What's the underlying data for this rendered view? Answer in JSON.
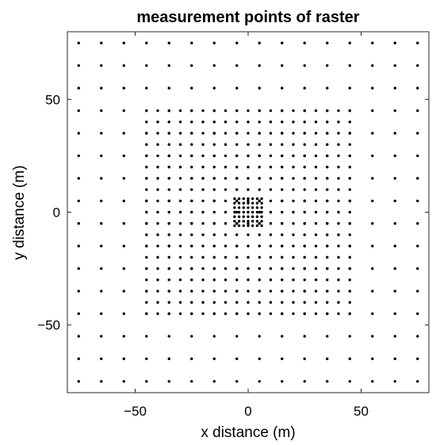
{
  "chart_data": {
    "type": "scatter",
    "title": "measurement points of raster",
    "xlabel": "x distance (m)",
    "ylabel": "y distance (m)",
    "xlim": [
      -80,
      80
    ],
    "ylim": [
      -80,
      80
    ],
    "xticks": [
      -50,
      0,
      50
    ],
    "yticks": [
      -50,
      0,
      50
    ],
    "xtick_labels": [
      "−50",
      "0",
      "50"
    ],
    "ytick_labels": [
      "−50",
      "0",
      "50"
    ],
    "grid": false,
    "marker_color": "#000000",
    "series": [
      {
        "grid_min": -75,
        "grid_max": 75,
        "spacing": 10
      },
      {
        "grid_min": -45,
        "grid_max": 45,
        "spacing": 5
      },
      {
        "grid_min": -6,
        "grid_max": 6,
        "spacing": 2
      }
    ]
  }
}
